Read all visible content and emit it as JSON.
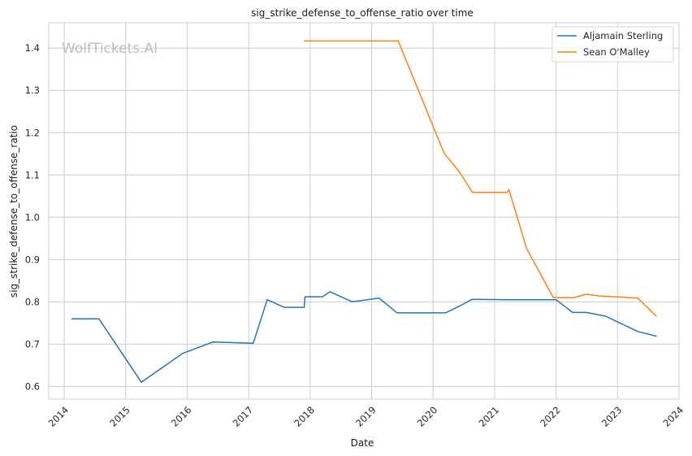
{
  "chart_data": {
    "type": "line",
    "title": "sig_strike_defense_to_offense_ratio over time",
    "xlabel": "Date",
    "ylabel": "sig_strike_defense_to_offense_ratio",
    "watermark": "WolfTickets.AI",
    "x_ticks": [
      "2014",
      "2015",
      "2016",
      "2017",
      "2018",
      "2019",
      "2020",
      "2021",
      "2022",
      "2023",
      "2024"
    ],
    "y_ticks": [
      "0.6",
      "0.7",
      "0.8",
      "0.9",
      "1.0",
      "1.1",
      "1.2",
      "1.3",
      "1.4"
    ],
    "xlim": [
      "2013-10-01",
      "2024-01-01"
    ],
    "ylim": [
      0.57,
      1.46
    ],
    "grid": true,
    "legend_position": "top-right",
    "series": [
      {
        "name": "Aljamain Sterling",
        "color": "#1f77b4",
        "points": [
          [
            "2014-02-15",
            0.76
          ],
          [
            "2014-07-26",
            0.76
          ],
          [
            "2015-04-04",
            0.61
          ],
          [
            "2015-12-05",
            0.678
          ],
          [
            "2016-06-01",
            0.705
          ],
          [
            "2017-01-28",
            0.702
          ],
          [
            "2017-04-21",
            0.805
          ],
          [
            "2017-07-30",
            0.787
          ],
          [
            "2017-11-27",
            0.787
          ],
          [
            "2017-12-01",
            0.812
          ],
          [
            "2018-03-15",
            0.812
          ],
          [
            "2018-04-29",
            0.824
          ],
          [
            "2018-09-08",
            0.8
          ],
          [
            "2019-02-14",
            0.809
          ],
          [
            "2019-06-01",
            0.774
          ],
          [
            "2020-03-15",
            0.774
          ],
          [
            "2020-06-06",
            0.79
          ],
          [
            "2020-08-20",
            0.806
          ],
          [
            "2021-04-01",
            0.805
          ],
          [
            "2021-12-31",
            0.805
          ],
          [
            "2022-04-09",
            0.775
          ],
          [
            "2022-06-30",
            0.775
          ],
          [
            "2022-10-22",
            0.766
          ],
          [
            "2023-05-01",
            0.73
          ],
          [
            "2023-08-19",
            0.719
          ]
        ]
      },
      {
        "name": "Sean O'Malley",
        "color": "#ff7f0e",
        "points": [
          [
            "2017-11-28",
            1.417
          ],
          [
            "2019-06-08",
            1.417
          ],
          [
            "2020-03-07",
            1.151
          ],
          [
            "2020-06-06",
            1.107
          ],
          [
            "2020-08-22",
            1.059
          ],
          [
            "2021-03-15",
            1.059
          ],
          [
            "2021-03-27",
            1.065
          ],
          [
            "2021-07-10",
            0.926
          ],
          [
            "2021-12-15",
            0.81
          ],
          [
            "2022-04-15",
            0.81
          ],
          [
            "2022-07-01",
            0.818
          ],
          [
            "2022-09-15",
            0.814
          ],
          [
            "2023-05-01",
            0.809
          ],
          [
            "2023-08-19",
            0.766
          ]
        ]
      }
    ]
  }
}
